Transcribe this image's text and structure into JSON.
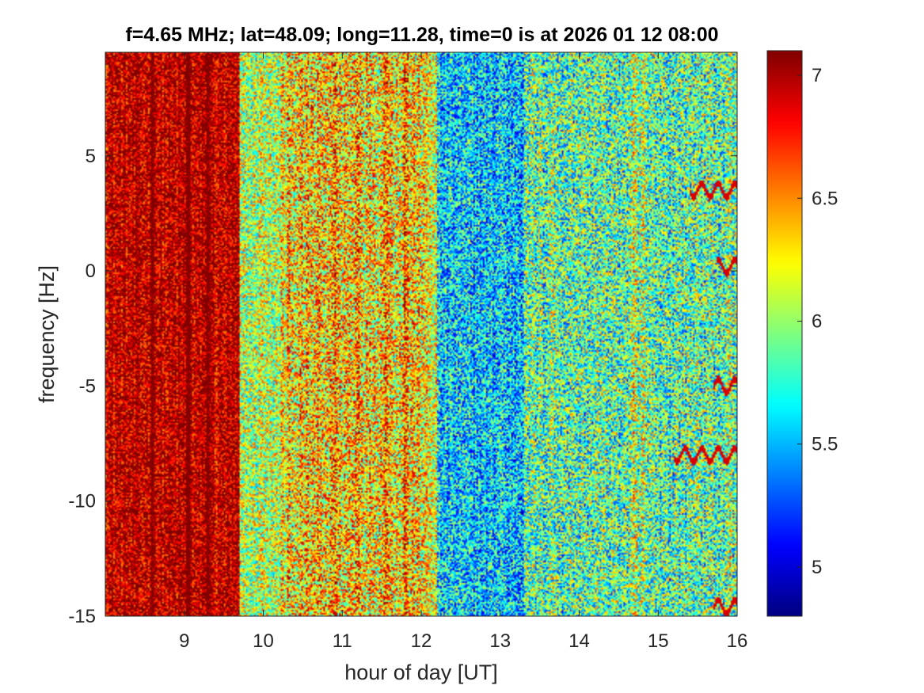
{
  "chart_data": {
    "type": "heatmap",
    "title": "f=4.65 MHz;  lat=48.09; long=11.28, time=0 is at 2026 01 12 08:00",
    "xlabel": "hour of day [UT]",
    "ylabel": "frequency [Hz]",
    "xlim": [
      8,
      16
    ],
    "ylim": [
      -15,
      9.5
    ],
    "xticks": [
      9,
      10,
      11,
      12,
      13,
      14,
      15,
      16
    ],
    "yticks": [
      5,
      0,
      -5,
      -10,
      -15
    ],
    "colormap": "jet",
    "clim": [
      4.8,
      7.1
    ],
    "colorbar": {
      "ticks": [
        7,
        6.5,
        6,
        5.5,
        5
      ],
      "position": "right"
    },
    "bands": [
      {
        "x_start": 8.0,
        "x_end": 9.7,
        "level": 6.95,
        "noise": 0.25
      },
      {
        "x_start": 9.7,
        "x_end": 10.3,
        "level": 6.05,
        "noise": 0.35
      },
      {
        "x_start": 10.3,
        "x_end": 12.05,
        "level": 6.3,
        "noise": 0.4
      },
      {
        "x_start": 12.05,
        "x_end": 12.2,
        "level": 6.2,
        "noise": 0.35
      },
      {
        "x_start": 12.2,
        "x_end": 13.3,
        "level": 5.55,
        "noise": 0.35
      },
      {
        "x_start": 13.3,
        "x_end": 16.0,
        "level": 5.85,
        "noise": 0.4
      }
    ],
    "streaks": [
      {
        "x": 8.6,
        "level": 7.05
      },
      {
        "x": 9.05,
        "level": 7.05
      },
      {
        "x": 9.3,
        "level": 7.05
      },
      {
        "x": 10.0,
        "level": 6.6
      },
      {
        "x": 10.25,
        "level": 6.8
      },
      {
        "x": 10.9,
        "level": 6.7
      },
      {
        "x": 11.2,
        "level": 6.8
      },
      {
        "x": 11.55,
        "level": 6.85
      },
      {
        "x": 11.8,
        "level": 6.9
      },
      {
        "x": 13.0,
        "level": 6.4
      },
      {
        "x": 13.65,
        "level": 6.5
      },
      {
        "x": 14.7,
        "level": 6.8
      },
      {
        "x": 14.8,
        "level": 6.7
      },
      {
        "x": 15.5,
        "level": 6.5
      },
      {
        "x": 15.9,
        "level": 6.6
      }
    ],
    "traces": [
      {
        "x_start": 15.4,
        "x_end": 16.0,
        "y": 3.5,
        "level": 6.9
      },
      {
        "x_start": 15.7,
        "x_end": 16.0,
        "y": -5.0,
        "level": 6.9
      },
      {
        "x_start": 15.2,
        "x_end": 16.0,
        "y": -8.0,
        "level": 6.9
      },
      {
        "x_start": 15.7,
        "x_end": 16.0,
        "y": -14.6,
        "level": 6.9
      },
      {
        "x_start": 15.75,
        "x_end": 16.0,
        "y": 0.2,
        "level": 6.9
      }
    ]
  }
}
